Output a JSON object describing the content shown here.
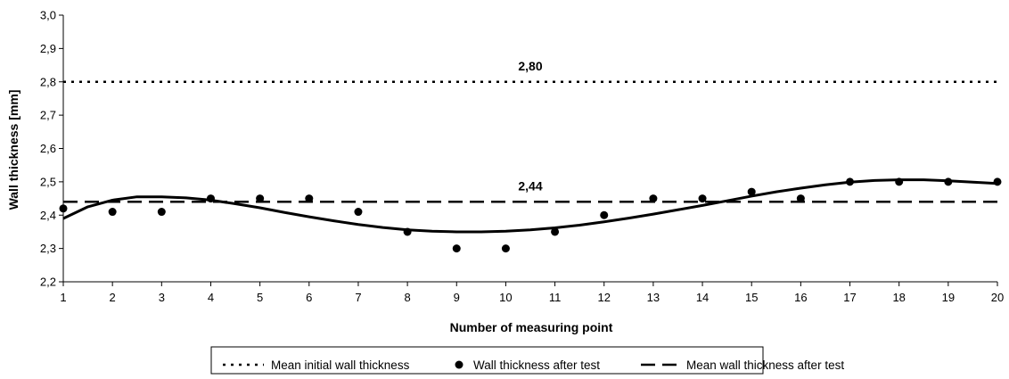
{
  "chart_data": {
    "type": "scatter",
    "xlabel": "Number of measuring point",
    "ylabel": "Wall thickness [mm]",
    "xlim": [
      1,
      20
    ],
    "ylim": [
      2.2,
      3.0
    ],
    "x_ticks": [
      "1",
      "2",
      "3",
      "4",
      "5",
      "6",
      "7",
      "8",
      "9",
      "10",
      "11",
      "12",
      "13",
      "14",
      "15",
      "16",
      "17",
      "18",
      "19",
      "20"
    ],
    "y_ticks": [
      "2,2",
      "2,3",
      "2,4",
      "2,5",
      "2,6",
      "2,7",
      "2,8",
      "2,9",
      "3,0"
    ],
    "grid": false,
    "legend_position": "bottom",
    "series": [
      {
        "name": "Mean initial wall thickness",
        "style": "dotted-line",
        "x": [
          1,
          20
        ],
        "y": [
          2.8,
          2.8
        ]
      },
      {
        "name": "Wall thickness after test",
        "style": "markers",
        "x": [
          1,
          2,
          3,
          4,
          5,
          6,
          7,
          8,
          9,
          10,
          11,
          12,
          13,
          14,
          15,
          16,
          17,
          18,
          19,
          20
        ],
        "y": [
          2.42,
          2.41,
          2.41,
          2.45,
          2.45,
          2.45,
          2.41,
          2.35,
          2.3,
          2.3,
          2.35,
          2.4,
          2.45,
          2.45,
          2.47,
          2.45,
          2.5,
          2.5,
          2.5,
          2.5
        ]
      },
      {
        "name": "Mean wall thickness after test",
        "style": "dashed-line",
        "x": [
          1,
          20
        ],
        "y": [
          2.44,
          2.44
        ]
      },
      {
        "style": "solid-trendline",
        "x": [
          1,
          1.5,
          2,
          2.5,
          3,
          3.5,
          4,
          4.5,
          5,
          5.5,
          6,
          6.5,
          7,
          7.5,
          8,
          8.5,
          9,
          9.5,
          10,
          10.5,
          11,
          11.5,
          12,
          12.5,
          13,
          13.5,
          14,
          14.5,
          15,
          15.5,
          16,
          16.5,
          17,
          17.5,
          18,
          18.5,
          19,
          19.5,
          20
        ],
        "y": [
          2.39,
          2.425,
          2.445,
          2.455,
          2.455,
          2.452,
          2.445,
          2.434,
          2.422,
          2.408,
          2.395,
          2.383,
          2.372,
          2.363,
          2.356,
          2.352,
          2.35,
          2.35,
          2.352,
          2.356,
          2.362,
          2.37,
          2.38,
          2.391,
          2.403,
          2.416,
          2.429,
          2.443,
          2.457,
          2.47,
          2.481,
          2.491,
          2.499,
          2.504,
          2.506,
          2.506,
          2.503,
          2.499,
          2.495
        ]
      }
    ],
    "annotations": [
      {
        "text": "2,80",
        "x": 10.5,
        "y": 2.8
      },
      {
        "text": "2,44",
        "x": 10.5,
        "y": 2.44
      }
    ],
    "colors": {
      "line": "#000000",
      "marker": "#000000"
    }
  }
}
